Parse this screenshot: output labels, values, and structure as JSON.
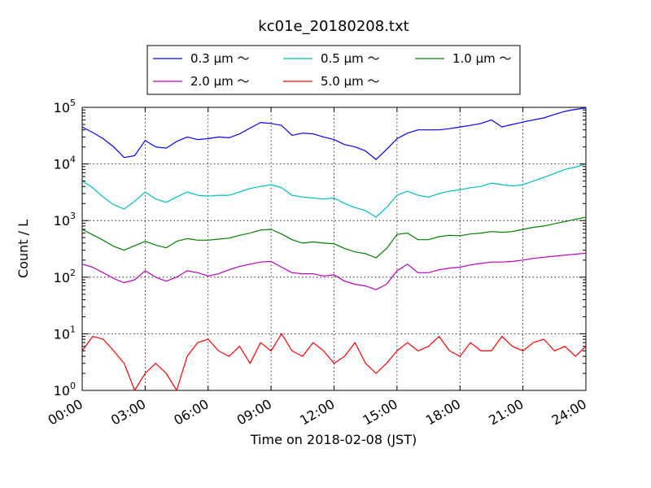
{
  "chart_data": {
    "type": "line",
    "title": "kc01e_20180208.txt",
    "xlabel": "Time on 2018-02-08 (JST)",
    "ylabel": "Count / L",
    "yscale": "log",
    "ylim": [
      1,
      100000
    ],
    "xlim": [
      "00:00",
      "24:00"
    ],
    "x_ticks": [
      "00:00",
      "03:00",
      "06:00",
      "09:00",
      "12:00",
      "15:00",
      "18:00",
      "21:00",
      "24:00"
    ],
    "y_ticks": [
      {
        "value": 1,
        "base": "10",
        "exp": "0"
      },
      {
        "value": 10,
        "base": "10",
        "exp": "1"
      },
      {
        "value": 100,
        "base": "10",
        "exp": "2"
      },
      {
        "value": 1000,
        "base": "10",
        "exp": "3"
      },
      {
        "value": 10000,
        "base": "10",
        "exp": "4"
      },
      {
        "value": 100000,
        "base": "10",
        "exp": "5"
      }
    ],
    "grid": true,
    "legend_position": "top",
    "x": [
      "00:00",
      "00:30",
      "01:00",
      "01:30",
      "02:00",
      "02:30",
      "03:00",
      "03:30",
      "04:00",
      "04:30",
      "05:00",
      "05:30",
      "06:00",
      "06:30",
      "07:00",
      "07:30",
      "08:00",
      "08:30",
      "09:00",
      "09:30",
      "10:00",
      "10:30",
      "11:00",
      "11:30",
      "12:00",
      "12:30",
      "13:00",
      "13:30",
      "14:00",
      "14:30",
      "15:00",
      "15:30",
      "16:00",
      "16:30",
      "17:00",
      "17:30",
      "18:00",
      "18:30",
      "19:00",
      "19:30",
      "20:00",
      "20:30",
      "21:00",
      "21:30",
      "22:00",
      "22:30",
      "23:00",
      "23:30",
      "24:00"
    ],
    "series": [
      {
        "name": "0.3 μm ～",
        "color": "#0000ff",
        "values": [
          45000,
          36000,
          28000,
          20000,
          13000,
          14000,
          26000,
          20000,
          19000,
          25000,
          30000,
          27000,
          28000,
          30000,
          29000,
          34000,
          43000,
          54000,
          52000,
          48000,
          32000,
          35000,
          34000,
          30000,
          27000,
          22000,
          20000,
          17000,
          12000,
          18000,
          28000,
          35000,
          40000,
          40000,
          40000,
          42000,
          45000,
          48000,
          52000,
          60000,
          45000,
          50000,
          55000,
          60000,
          65000,
          75000,
          85000,
          92000,
          98000
        ]
      },
      {
        "name": "0.5 μm ～",
        "color": "#00bfbf",
        "values": [
          5000,
          3800,
          2600,
          1900,
          1600,
          2200,
          3200,
          2400,
          2100,
          2600,
          3200,
          2800,
          2700,
          2800,
          2800,
          3200,
          3700,
          4000,
          4300,
          3800,
          2800,
          2600,
          2500,
          2400,
          2500,
          2000,
          1700,
          1500,
          1150,
          1700,
          2800,
          3300,
          2800,
          2600,
          3000,
          3300,
          3500,
          3800,
          4000,
          4600,
          4300,
          4100,
          4300,
          5000,
          5800,
          6800,
          8000,
          8800,
          10000
        ]
      },
      {
        "name": "1.0 μm ～",
        "color": "#008000",
        "values": [
          700,
          560,
          450,
          350,
          300,
          360,
          430,
          370,
          330,
          430,
          480,
          450,
          450,
          470,
          490,
          550,
          600,
          680,
          700,
          580,
          460,
          400,
          420,
          400,
          390,
          320,
          280,
          260,
          220,
          320,
          570,
          600,
          460,
          460,
          520,
          550,
          540,
          580,
          600,
          640,
          620,
          640,
          700,
          760,
          800,
          880,
          960,
          1050,
          1150
        ]
      },
      {
        "name": "2.0 μm ～",
        "color": "#bf00bf",
        "values": [
          170,
          150,
          120,
          95,
          80,
          90,
          130,
          100,
          85,
          100,
          130,
          120,
          105,
          115,
          135,
          155,
          170,
          185,
          190,
          150,
          120,
          115,
          115,
          105,
          110,
          85,
          75,
          70,
          60,
          75,
          130,
          170,
          120,
          120,
          135,
          145,
          150,
          165,
          175,
          185,
          185,
          190,
          200,
          215,
          225,
          235,
          245,
          255,
          265
        ]
      },
      {
        "name": "5.0 μm ～",
        "color": "#ff0000",
        "values": [
          5,
          9,
          8,
          5,
          3,
          1,
          2,
          3,
          2,
          1,
          4,
          7,
          8,
          5,
          4,
          6,
          3,
          7,
          5,
          10,
          5,
          4,
          7,
          5,
          3,
          4,
          7,
          3,
          2,
          3,
          5,
          7,
          5,
          6,
          9,
          5,
          4,
          7,
          5,
          5,
          9,
          6,
          5,
          7,
          8,
          5,
          6,
          4,
          6
        ]
      }
    ]
  }
}
